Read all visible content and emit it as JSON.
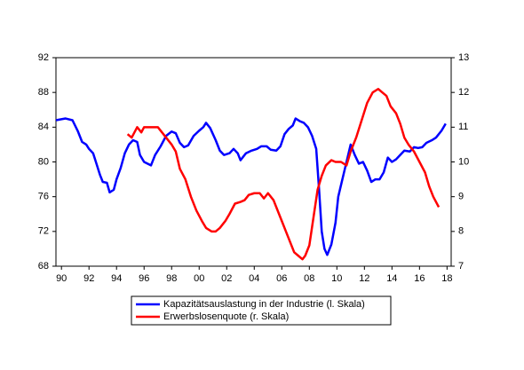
{
  "chart_data": {
    "type": "line",
    "xlim": [
      1989.6,
      2018.3
    ],
    "xticks": [
      {
        "value": 1990,
        "label": "90"
      },
      {
        "value": 1992,
        "label": "92"
      },
      {
        "value": 1994,
        "label": "94"
      },
      {
        "value": 1996,
        "label": "96"
      },
      {
        "value": 1998,
        "label": "98"
      },
      {
        "value": 2000,
        "label": "00"
      },
      {
        "value": 2002,
        "label": "02"
      },
      {
        "value": 2004,
        "label": "04"
      },
      {
        "value": 2006,
        "label": "06"
      },
      {
        "value": 2008,
        "label": "08"
      },
      {
        "value": 2010,
        "label": "10"
      },
      {
        "value": 2012,
        "label": "12"
      },
      {
        "value": 2014,
        "label": "14"
      },
      {
        "value": 2016,
        "label": "16"
      },
      {
        "value": 2018,
        "label": "18"
      }
    ],
    "ylim": [
      68,
      92
    ],
    "yticks": [
      68,
      72,
      76,
      80,
      84,
      88,
      92
    ],
    "y2lim": [
      7,
      13
    ],
    "y2ticks": [
      7,
      8,
      9,
      10,
      11,
      12,
      13
    ],
    "series": [
      {
        "name": "Kapazitätsauslastung in der Industrie (l. Skala)",
        "color": "#0000ff",
        "axis": "y",
        "x": [
          1989.6,
          1990.3,
          1990.8,
          1991.2,
          1991.5,
          1991.8,
          1992.0,
          1992.3,
          1992.5,
          1992.8,
          1993.0,
          1993.3,
          1993.5,
          1993.8,
          1994.0,
          1994.3,
          1994.6,
          1994.9,
          1995.2,
          1995.5,
          1995.7,
          1996.0,
          1996.5,
          1996.8,
          1997.2,
          1997.6,
          1998.0,
          1998.3,
          1998.6,
          1998.9,
          1999.2,
          1999.6,
          2000.0,
          2000.3,
          2000.5,
          2000.8,
          2001.2,
          2001.5,
          2001.8,
          2002.2,
          2002.5,
          2002.8,
          2003.0,
          2003.4,
          2003.8,
          2004.2,
          2004.5,
          2004.9,
          2005.2,
          2005.6,
          2005.9,
          2006.2,
          2006.5,
          2006.8,
          2007.0,
          2007.3,
          2007.6,
          2007.9,
          2008.2,
          2008.5,
          2008.7,
          2008.9,
          2009.1,
          2009.3,
          2009.6,
          2009.9,
          2010.1,
          2010.4,
          2010.7,
          2011.0,
          2011.3,
          2011.6,
          2011.9,
          2012.2,
          2012.5,
          2012.8,
          2013.1,
          2013.4,
          2013.7,
          2014.0,
          2014.3,
          2014.6,
          2014.9,
          2015.3,
          2015.6,
          2015.9,
          2016.2,
          2016.5,
          2016.9,
          2017.2,
          2017.6,
          2017.9
        ],
        "values": [
          84.8,
          85.0,
          84.8,
          83.5,
          82.3,
          82.0,
          81.5,
          81.0,
          80.0,
          78.5,
          77.7,
          77.6,
          76.5,
          76.8,
          78.0,
          79.3,
          81.0,
          82.0,
          82.5,
          82.3,
          80.8,
          80.0,
          79.6,
          80.8,
          81.8,
          83.0,
          83.5,
          83.3,
          82.2,
          81.7,
          81.9,
          83.0,
          83.6,
          84.0,
          84.5,
          83.9,
          82.5,
          81.3,
          80.8,
          81.0,
          81.5,
          81.0,
          80.2,
          81.0,
          81.3,
          81.5,
          81.8,
          81.8,
          81.4,
          81.3,
          81.8,
          83.2,
          83.8,
          84.2,
          85.0,
          84.7,
          84.5,
          84.0,
          83.0,
          81.5,
          77.0,
          72.0,
          70.0,
          69.3,
          70.5,
          73.0,
          76.0,
          78.0,
          80.0,
          82.0,
          80.8,
          79.8,
          80.0,
          79.0,
          77.7,
          78.0,
          78.0,
          78.8,
          80.5,
          80.0,
          80.3,
          80.8,
          81.3,
          81.2,
          81.7,
          81.6,
          81.7,
          82.2,
          82.5,
          82.8,
          83.6,
          84.4
        ]
      },
      {
        "name": "Erwerbslosenquote (r. Skala)",
        "color": "#ff0000",
        "axis": "y2",
        "x": [
          1994.8,
          1995.1,
          1995.5,
          1995.8,
          1996.0,
          1996.5,
          1997.0,
          1997.3,
          1997.6,
          1998.0,
          1998.3,
          1998.6,
          1999.0,
          1999.4,
          1999.8,
          2000.2,
          2000.5,
          2000.9,
          2001.2,
          2001.5,
          2001.9,
          2002.2,
          2002.6,
          2003.0,
          2003.3,
          2003.6,
          2004.0,
          2004.4,
          2004.7,
          2005.0,
          2005.4,
          2005.8,
          2006.1,
          2006.5,
          2006.9,
          2007.2,
          2007.5,
          2007.7,
          2008.0,
          2008.3,
          2008.6,
          2008.9,
          2009.2,
          2009.6,
          2009.9,
          2010.3,
          2010.7,
          2011.0,
          2011.4,
          2011.8,
          2012.2,
          2012.6,
          2013.0,
          2013.3,
          2013.6,
          2013.9,
          2014.3,
          2014.6,
          2014.9,
          2015.2,
          2015.6,
          2016.0,
          2016.4,
          2016.7,
          2017.0,
          2017.4
        ],
        "values": [
          10.8,
          10.7,
          11.0,
          10.85,
          11.0,
          11.0,
          11.0,
          10.85,
          10.7,
          10.5,
          10.3,
          9.8,
          9.5,
          9.0,
          8.6,
          8.3,
          8.1,
          8.0,
          8.0,
          8.1,
          8.3,
          8.5,
          8.8,
          8.85,
          8.9,
          9.05,
          9.1,
          9.1,
          8.95,
          9.1,
          8.9,
          8.5,
          8.2,
          7.8,
          7.4,
          7.3,
          7.2,
          7.3,
          7.6,
          8.4,
          9.2,
          9.6,
          9.9,
          10.05,
          10.0,
          10.0,
          9.9,
          10.3,
          10.7,
          11.2,
          11.7,
          12.0,
          12.1,
          12.0,
          11.9,
          11.6,
          11.4,
          11.1,
          10.7,
          10.5,
          10.3,
          10.0,
          9.7,
          9.3,
          9.0,
          8.7
        ]
      }
    ]
  }
}
